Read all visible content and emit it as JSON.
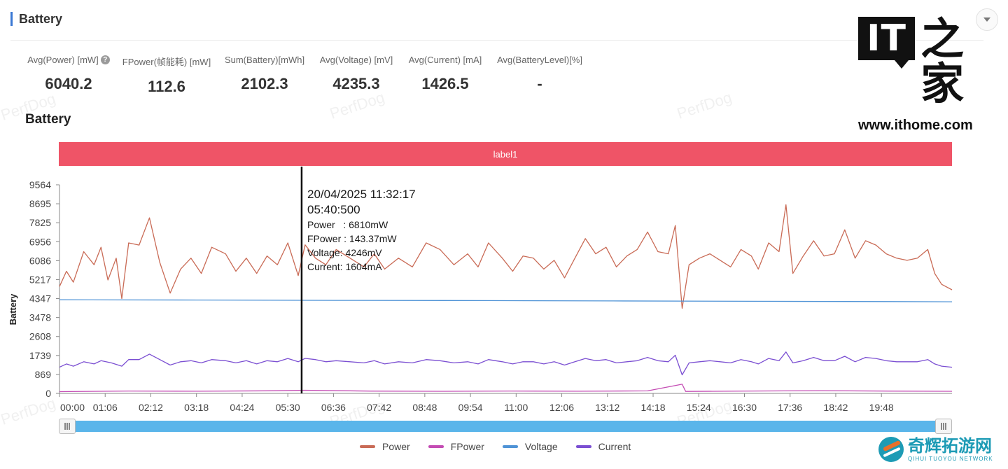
{
  "header": {
    "title": "Battery"
  },
  "stats": [
    {
      "label": "Avg(Power) [mW]",
      "value": "6040.2",
      "help": true
    },
    {
      "label": "FPower(帧能耗) [mW]",
      "value": "112.6"
    },
    {
      "label": "Sum(Battery)[mWh]",
      "value": "2102.3"
    },
    {
      "label": "Avg(Voltage) [mV]",
      "value": "4235.3"
    },
    {
      "label": "Avg(Current) [mA]",
      "value": "1426.5"
    },
    {
      "label": "Avg(BatteryLevel)[%]",
      "value": "-"
    }
  ],
  "logo": {
    "it": "IT",
    "jia": "之家",
    "url": "www.ithome.com"
  },
  "watermark": "PerfDog",
  "brand2": {
    "cn": "奇辉拓游网",
    "en": "QIHUI TUOYOU NETWORK"
  },
  "chart_data": {
    "type": "line",
    "title": "Battery",
    "label_band": "label1",
    "ylabel": "Battery",
    "ylim": [
      0,
      9564
    ],
    "y_ticks": [
      "0",
      "869",
      "1739",
      "2608",
      "3478",
      "4347",
      "5217",
      "6086",
      "6956",
      "7825",
      "8695",
      "9564"
    ],
    "x_ticks": [
      "00:00",
      "01:06",
      "02:12",
      "03:18",
      "04:24",
      "05:30",
      "06:36",
      "07:42",
      "08:48",
      "09:54",
      "11:00",
      "12:06",
      "13:12",
      "14:18",
      "15:24",
      "16:30",
      "17:36",
      "18:42",
      "19:48"
    ],
    "x_range_minutes": [
      0,
      1290
    ],
    "series": [
      {
        "name": "Power",
        "color": "#c96b56",
        "points": [
          [
            0,
            4900
          ],
          [
            10,
            5600
          ],
          [
            20,
            5100
          ],
          [
            35,
            6500
          ],
          [
            50,
            5900
          ],
          [
            60,
            6700
          ],
          [
            70,
            5200
          ],
          [
            82,
            6200
          ],
          [
            90,
            4350
          ],
          [
            100,
            6900
          ],
          [
            115,
            6800
          ],
          [
            130,
            8050
          ],
          [
            145,
            6000
          ],
          [
            160,
            4600
          ],
          [
            175,
            5700
          ],
          [
            190,
            6200
          ],
          [
            205,
            5500
          ],
          [
            220,
            6700
          ],
          [
            240,
            6400
          ],
          [
            255,
            5600
          ],
          [
            270,
            6200
          ],
          [
            285,
            5500
          ],
          [
            300,
            6300
          ],
          [
            315,
            5900
          ],
          [
            330,
            6900
          ],
          [
            345,
            5400
          ],
          [
            355,
            6810
          ],
          [
            370,
            6200
          ],
          [
            385,
            5900
          ],
          [
            400,
            6600
          ],
          [
            420,
            6200
          ],
          [
            440,
            5800
          ],
          [
            455,
            6400
          ],
          [
            470,
            5700
          ],
          [
            490,
            6200
          ],
          [
            510,
            5800
          ],
          [
            530,
            6900
          ],
          [
            550,
            6600
          ],
          [
            570,
            5900
          ],
          [
            590,
            6400
          ],
          [
            605,
            5800
          ],
          [
            620,
            6900
          ],
          [
            640,
            6200
          ],
          [
            655,
            5600
          ],
          [
            670,
            6300
          ],
          [
            685,
            6200
          ],
          [
            700,
            5700
          ],
          [
            715,
            6100
          ],
          [
            730,
            5300
          ],
          [
            745,
            6200
          ],
          [
            760,
            7100
          ],
          [
            775,
            6400
          ],
          [
            790,
            6700
          ],
          [
            805,
            5800
          ],
          [
            820,
            6300
          ],
          [
            835,
            6600
          ],
          [
            850,
            7400
          ],
          [
            865,
            6500
          ],
          [
            880,
            6400
          ],
          [
            890,
            7700
          ],
          [
            900,
            3900
          ],
          [
            910,
            5900
          ],
          [
            925,
            6200
          ],
          [
            940,
            6400
          ],
          [
            955,
            6100
          ],
          [
            970,
            5800
          ],
          [
            985,
            6600
          ],
          [
            1000,
            6300
          ],
          [
            1010,
            5700
          ],
          [
            1025,
            6900
          ],
          [
            1040,
            6500
          ],
          [
            1050,
            8650
          ],
          [
            1060,
            5500
          ],
          [
            1075,
            6300
          ],
          [
            1090,
            7000
          ],
          [
            1105,
            6300
          ],
          [
            1120,
            6400
          ],
          [
            1135,
            7500
          ],
          [
            1150,
            6200
          ],
          [
            1165,
            7000
          ],
          [
            1180,
            6800
          ],
          [
            1195,
            6400
          ],
          [
            1210,
            6200
          ],
          [
            1225,
            6100
          ],
          [
            1240,
            6200
          ],
          [
            1255,
            6600
          ],
          [
            1265,
            5500
          ],
          [
            1275,
            5000
          ],
          [
            1290,
            4750
          ]
        ]
      },
      {
        "name": "FPower",
        "color": "#c44cb4",
        "points": [
          [
            0,
            80
          ],
          [
            100,
            110
          ],
          [
            200,
            100
          ],
          [
            300,
            120
          ],
          [
            355,
            143
          ],
          [
            450,
            105
          ],
          [
            550,
            95
          ],
          [
            650,
            110
          ],
          [
            750,
            100
          ],
          [
            850,
            115
          ],
          [
            900,
            420
          ],
          [
            905,
            90
          ],
          [
            1000,
            110
          ],
          [
            1100,
            125
          ],
          [
            1200,
            105
          ],
          [
            1290,
            95
          ]
        ]
      },
      {
        "name": "Voltage",
        "color": "#4f93d6",
        "points": [
          [
            0,
            4290
          ],
          [
            200,
            4280
          ],
          [
            400,
            4265
          ],
          [
            600,
            4255
          ],
          [
            800,
            4240
          ],
          [
            1000,
            4225
          ],
          [
            1200,
            4210
          ],
          [
            1290,
            4200
          ]
        ]
      },
      {
        "name": "Current",
        "color": "#7b4fd2",
        "points": [
          [
            0,
            1200
          ],
          [
            10,
            1350
          ],
          [
            20,
            1250
          ],
          [
            35,
            1450
          ],
          [
            50,
            1350
          ],
          [
            60,
            1500
          ],
          [
            75,
            1400
          ],
          [
            90,
            1250
          ],
          [
            100,
            1550
          ],
          [
            115,
            1550
          ],
          [
            130,
            1800
          ],
          [
            145,
            1550
          ],
          [
            160,
            1300
          ],
          [
            175,
            1450
          ],
          [
            190,
            1500
          ],
          [
            205,
            1400
          ],
          [
            220,
            1550
          ],
          [
            240,
            1500
          ],
          [
            255,
            1400
          ],
          [
            270,
            1500
          ],
          [
            285,
            1350
          ],
          [
            300,
            1500
          ],
          [
            315,
            1450
          ],
          [
            330,
            1600
          ],
          [
            345,
            1450
          ],
          [
            355,
            1604
          ],
          [
            370,
            1550
          ],
          [
            385,
            1450
          ],
          [
            400,
            1500
          ],
          [
            420,
            1450
          ],
          [
            440,
            1400
          ],
          [
            455,
            1500
          ],
          [
            470,
            1350
          ],
          [
            490,
            1450
          ],
          [
            510,
            1400
          ],
          [
            530,
            1550
          ],
          [
            550,
            1500
          ],
          [
            570,
            1400
          ],
          [
            590,
            1450
          ],
          [
            605,
            1350
          ],
          [
            620,
            1550
          ],
          [
            640,
            1450
          ],
          [
            655,
            1350
          ],
          [
            670,
            1450
          ],
          [
            685,
            1450
          ],
          [
            700,
            1350
          ],
          [
            715,
            1450
          ],
          [
            730,
            1300
          ],
          [
            745,
            1450
          ],
          [
            760,
            1600
          ],
          [
            775,
            1500
          ],
          [
            790,
            1550
          ],
          [
            805,
            1400
          ],
          [
            820,
            1450
          ],
          [
            835,
            1500
          ],
          [
            850,
            1650
          ],
          [
            865,
            1500
          ],
          [
            880,
            1450
          ],
          [
            890,
            1750
          ],
          [
            900,
            850
          ],
          [
            910,
            1400
          ],
          [
            925,
            1450
          ],
          [
            940,
            1500
          ],
          [
            955,
            1450
          ],
          [
            970,
            1400
          ],
          [
            985,
            1550
          ],
          [
            1000,
            1450
          ],
          [
            1010,
            1350
          ],
          [
            1025,
            1600
          ],
          [
            1040,
            1500
          ],
          [
            1050,
            1900
          ],
          [
            1060,
            1400
          ],
          [
            1075,
            1500
          ],
          [
            1090,
            1650
          ],
          [
            1105,
            1500
          ],
          [
            1120,
            1500
          ],
          [
            1135,
            1700
          ],
          [
            1150,
            1450
          ],
          [
            1165,
            1650
          ],
          [
            1180,
            1600
          ],
          [
            1195,
            1500
          ],
          [
            1210,
            1450
          ],
          [
            1225,
            1450
          ],
          [
            1240,
            1450
          ],
          [
            1255,
            1550
          ],
          [
            1265,
            1350
          ],
          [
            1275,
            1250
          ],
          [
            1290,
            1200
          ]
        ]
      }
    ],
    "cursor_x_minutes": 350,
    "tooltip": {
      "date": "20/04/2025 11:32:17",
      "time": "05:40:500",
      "rows": [
        "Power   : 6810mW",
        "FPower : 143.37mW",
        "Voltage: 4246mV",
        "Current: 1604mA"
      ]
    },
    "legend": [
      "Power",
      "FPower",
      "Voltage",
      "Current"
    ],
    "legend_position": "bottom-center",
    "grid": false
  }
}
